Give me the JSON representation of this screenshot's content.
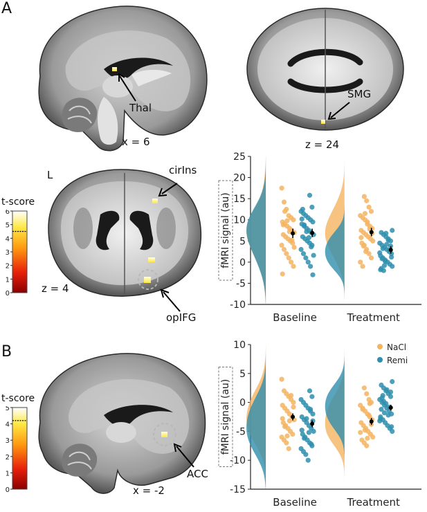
{
  "panels": {
    "A": {
      "letter": "A",
      "brains": {
        "sagittal": {
          "slice_label": "x = 6",
          "annotation": "Thal"
        },
        "axial_top": {
          "slice_label": "z = 24",
          "annotation": "SMG"
        },
        "axial_mid": {
          "slice_label": "z = 4",
          "side_label": "L",
          "annotation_top": "cirIns",
          "annotation_bottom": "opIFG"
        }
      },
      "colorbar": {
        "title": "t-score",
        "ticks": [
          "6",
          "5",
          "4",
          "3",
          "2",
          "1",
          "0"
        ],
        "max": 6,
        "threshold": 4.5
      }
    },
    "B": {
      "letter": "B",
      "brains": {
        "sagittal": {
          "slice_label": "x = -2",
          "annotation": "ACC"
        }
      },
      "colorbar": {
        "title": "t-score",
        "ticks": [
          "5",
          "4",
          "3",
          "2",
          "1",
          "0"
        ],
        "max": 5,
        "threshold": 4.2
      }
    }
  },
  "legend": {
    "items": [
      {
        "name": "NaCl",
        "color": "#f5b462"
      },
      {
        "name": "Remi",
        "color": "#2f8fae"
      }
    ]
  },
  "colors": {
    "nacl": "#f5b462",
    "remi": "#2f8fae",
    "mean": "#000000",
    "axis": "#222222"
  },
  "chart_data": [
    {
      "type": "scatter",
      "title": "",
      "ylabel": "fMRI signal (au)",
      "ylim": [
        -10,
        25
      ],
      "yticks": [
        "25",
        "20",
        "15",
        "10",
        "5",
        "0",
        "-5",
        "-10"
      ],
      "categories": [
        "Baseline",
        "Treatment"
      ],
      "series": [
        {
          "name": "NaCl",
          "mean": [
            6.8,
            7.1
          ],
          "sem": [
            1.1,
            1.0
          ],
          "points": [
            [
              17.5,
              14.2,
              12.5,
              11.0,
              10.5,
              10.0,
              9.5,
              9.0,
              8.5,
              8.0,
              7.5,
              7.0,
              6.5,
              6.0,
              5.5,
              5.0,
              4.5,
              4.0,
              3.0,
              2.0,
              1.0,
              0.0,
              -1.0,
              -2.8,
              12.0,
              9.8,
              7.2,
              5.2,
              3.5,
              8.8
            ],
            [
              15.5,
              14.5,
              13.0,
              12.0,
              11.0,
              10.5,
              10.0,
              9.0,
              8.5,
              8.0,
              7.5,
              7.0,
              6.5,
              6.0,
              5.5,
              5.0,
              4.5,
              4.0,
              3.0,
              2.0,
              1.0,
              0.0,
              -1.0,
              11.5,
              9.5,
              7.8,
              6.8,
              5.8,
              3.8,
              2.5
            ]
          ]
        },
        {
          "name": "Remi",
          "mean": [
            6.9,
            2.9
          ],
          "sem": [
            1.0,
            0.9
          ],
          "points": [
            [
              15.8,
              13.0,
              12.0,
              11.5,
              11.0,
              10.5,
              10.0,
              9.5,
              9.0,
              8.5,
              8.0,
              7.5,
              7.0,
              6.5,
              6.0,
              5.5,
              5.0,
              4.5,
              4.0,
              3.0,
              2.0,
              1.0,
              0.0,
              -1.0,
              -3.0,
              10.2,
              8.8,
              7.2,
              5.8,
              3.6,
              1.6,
              12.5
            ],
            [
              7.5,
              7.0,
              6.5,
              6.0,
              5.5,
              5.0,
              4.5,
              4.0,
              3.5,
              3.0,
              2.5,
              2.0,
              1.5,
              1.0,
              0.5,
              0.0,
              -0.5,
              -1.0,
              -1.5,
              -2.0,
              6.8,
              5.2,
              3.8,
              2.2,
              0.8,
              -0.8,
              4.2,
              2.8,
              1.2,
              -1.8,
              3.2,
              0.2
            ]
          ]
        }
      ]
    },
    {
      "type": "scatter",
      "title": "",
      "ylabel": "fMRI signal (au)",
      "ylim": [
        -15,
        10
      ],
      "yticks": [
        "10",
        "5",
        "0",
        "-5",
        "-10",
        "-15"
      ],
      "categories": [
        "Baseline",
        "Treatment"
      ],
      "series": [
        {
          "name": "NaCl",
          "mean": [
            -2.5,
            -3.3
          ],
          "sem": [
            0.6,
            0.6
          ],
          "points": [
            [
              4.0,
              2.0,
              1.5,
              1.0,
              0.5,
              0.0,
              -0.5,
              -1.0,
              -1.5,
              -2.0,
              -2.5,
              -3.0,
              -3.5,
              -4.0,
              -4.5,
              -5.0,
              -5.5,
              -6.0,
              -6.5,
              -7.0,
              -8.0,
              1.2,
              -0.8,
              -2.8,
              -4.2,
              -5.8,
              -3.2
            ],
            [
              2.5,
              1.5,
              0.5,
              0.0,
              -0.5,
              -1.0,
              -1.5,
              -2.0,
              -2.5,
              -3.0,
              -3.5,
              -4.0,
              -4.5,
              -5.0,
              -5.5,
              -6.0,
              -6.5,
              -7.0,
              -7.5,
              -2.2,
              -3.8,
              -5.2,
              -1.2,
              -4.8,
              -6.2,
              -0.2
            ]
          ]
        },
        {
          "name": "Remi",
          "mean": [
            -3.7,
            -0.9
          ],
          "sem": [
            0.6,
            0.5
          ],
          "points": [
            [
              2.0,
              1.0,
              0.5,
              0.0,
              -0.5,
              -1.0,
              -1.5,
              -2.0,
              -2.5,
              -3.0,
              -3.5,
              -4.0,
              -4.5,
              -5.0,
              -5.5,
              -6.0,
              -6.5,
              -7.0,
              -7.5,
              -8.0,
              -8.5,
              -9.0,
              -10.0,
              -1.2,
              -3.2,
              -4.8,
              -6.2,
              -2.8,
              -5.2,
              -7.2
            ],
            [
              3.6,
              3.0,
              2.5,
              2.0,
              1.5,
              1.0,
              0.5,
              0.0,
              -0.5,
              -1.0,
              -1.5,
              -2.0,
              -2.5,
              -3.0,
              -3.5,
              -4.0,
              -4.5,
              -5.0,
              -1.2,
              0.2,
              -0.2,
              -2.2,
              1.8,
              -3.2,
              0.8,
              -1.8,
              2.2,
              -0.8,
              -4.2,
              -2.8,
              1.2
            ]
          ]
        }
      ]
    }
  ]
}
